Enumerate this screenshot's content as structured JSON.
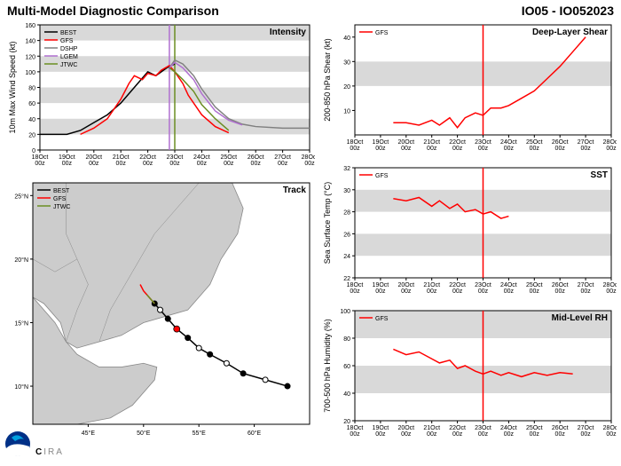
{
  "main_title": "Multi-Model Diagnostic Comparison",
  "storm_id": "IO05 - IO052023",
  "xaxis": {
    "ticks": [
      "18Oct\n00z",
      "19Oct\n00z",
      "20Oct\n00z",
      "21Oct\n00z",
      "22Oct\n00z",
      "23Oct\n00z",
      "24Oct\n00z",
      "25Oct\n00z",
      "26Oct\n00z",
      "27Oct\n00z",
      "28Oct\n00z"
    ],
    "range": [
      0,
      10
    ],
    "now_x": 5.0
  },
  "colors": {
    "band": "#d9d9d9",
    "bg": "#ffffff",
    "axis": "#000000",
    "BEST": "#000000",
    "GFS": "#ff0000",
    "DSHP": "#808080",
    "LGEM": "#b070d0",
    "JTWC": "#6b8e23",
    "map_land": "#cccccc",
    "map_border": "#888888",
    "map_water": "#ffffff",
    "now_line": "#ff0000",
    "track_marker_fill": "#ffffff"
  },
  "fonts": {
    "title": 14,
    "panel_title": 10,
    "axis_label": 9,
    "tick": 7,
    "legend": 7
  },
  "intensity": {
    "title": "Intensity",
    "ylabel": "10m Max Wind Speed (kt)",
    "ylim": [
      0,
      160
    ],
    "ytick_step": 20,
    "legend": [
      "BEST",
      "GFS",
      "DSHP",
      "LGEM",
      "JTWC"
    ],
    "series": {
      "BEST": [
        [
          0,
          20
        ],
        [
          1,
          20
        ],
        [
          1.5,
          25
        ],
        [
          2,
          35
        ],
        [
          2.5,
          45
        ],
        [
          3,
          60
        ],
        [
          3.5,
          80
        ],
        [
          4,
          100
        ],
        [
          4.3,
          95
        ],
        [
          4.5,
          100
        ],
        [
          4.7,
          105
        ],
        [
          5,
          110
        ]
      ],
      "GFS": [
        [
          1.5,
          20
        ],
        [
          2,
          28
        ],
        [
          2.5,
          40
        ],
        [
          3,
          65
        ],
        [
          3.3,
          85
        ],
        [
          3.5,
          95
        ],
        [
          3.8,
          90
        ],
        [
          4,
          98
        ],
        [
          4.3,
          95
        ],
        [
          4.5,
          102
        ],
        [
          4.8,
          108
        ],
        [
          5,
          100
        ],
        [
          5.3,
          85
        ],
        [
          5.5,
          70
        ],
        [
          6,
          45
        ],
        [
          6.5,
          30
        ],
        [
          7,
          22
        ]
      ],
      "DSHP": [
        [
          4.8,
          105
        ],
        [
          5,
          115
        ],
        [
          5.3,
          110
        ],
        [
          5.7,
          95
        ],
        [
          6,
          78
        ],
        [
          6.5,
          55
        ],
        [
          7,
          40
        ],
        [
          7.5,
          33
        ],
        [
          8,
          30
        ],
        [
          9,
          28
        ],
        [
          10,
          28
        ]
      ],
      "LGEM": [
        [
          4.8,
          105
        ],
        [
          5,
          112
        ],
        [
          5.3,
          105
        ],
        [
          5.7,
          90
        ],
        [
          6,
          72
        ],
        [
          6.5,
          50
        ],
        [
          7,
          38
        ],
        [
          7.5,
          32
        ]
      ],
      "JTWC": [
        [
          4.8,
          105
        ],
        [
          5,
          100
        ],
        [
          5.3,
          90
        ],
        [
          5.7,
          75
        ],
        [
          6,
          58
        ],
        [
          6.5,
          40
        ],
        [
          7,
          25
        ]
      ]
    },
    "vlines": [
      {
        "x": 4.8,
        "color": "#b070d0"
      },
      {
        "x": 5.0,
        "color": "#6b8e23"
      }
    ]
  },
  "track": {
    "title": "Track",
    "legend": [
      "BEST",
      "GFS",
      "JTWC"
    ],
    "lon_range": [
      40,
      65
    ],
    "lat_range": [
      7,
      26
    ],
    "lon_ticks": [
      45,
      50,
      55,
      60
    ],
    "lat_ticks": [
      10,
      15,
      20,
      25
    ],
    "lon_tick_labels": [
      "45°E",
      "50°E",
      "55°E",
      "60°E"
    ],
    "lat_tick_labels": [
      "10°N",
      "15°N",
      "20°N",
      "25°N"
    ],
    "series": {
      "BEST": {
        "points": [
          [
            63,
            10
          ],
          [
            61,
            10.5
          ],
          [
            59,
            11
          ],
          [
            57.5,
            11.8
          ],
          [
            56,
            12.5
          ],
          [
            55,
            13
          ],
          [
            54,
            13.8
          ],
          [
            53,
            14.5
          ],
          [
            52.2,
            15.3
          ],
          [
            51.5,
            16
          ],
          [
            51,
            16.5
          ]
        ],
        "markers": true
      },
      "GFS": {
        "points": [
          [
            51,
            16.5
          ],
          [
            50.5,
            17
          ],
          [
            50,
            17.5
          ],
          [
            49.7,
            18
          ]
        ],
        "markers": false
      },
      "JTWC": {
        "points": [
          [
            51,
            16.5
          ],
          [
            50.7,
            16.8
          ],
          [
            50.3,
            17.2
          ]
        ],
        "markers": false
      }
    },
    "highlight_marker": {
      "lon": 53,
      "lat": 14.5,
      "color": "#ff0000"
    }
  },
  "shear": {
    "title": "Deep-Layer Shear",
    "ylabel": "200-850 hPa Shear (kt)",
    "ylim": [
      0,
      45
    ],
    "yticks": [
      10,
      20,
      30,
      40
    ],
    "legend": [
      "GFS"
    ],
    "series": {
      "GFS": [
        [
          1.5,
          5
        ],
        [
          2,
          5
        ],
        [
          2.5,
          4
        ],
        [
          3,
          6
        ],
        [
          3.3,
          4
        ],
        [
          3.7,
          7
        ],
        [
          4,
          3
        ],
        [
          4.3,
          7
        ],
        [
          4.7,
          9
        ],
        [
          5,
          8
        ],
        [
          5.3,
          11
        ],
        [
          5.7,
          11
        ],
        [
          6,
          12
        ],
        [
          6.5,
          15
        ],
        [
          7,
          18
        ],
        [
          7.5,
          23
        ],
        [
          8,
          28
        ],
        [
          8.5,
          34
        ],
        [
          9,
          40
        ]
      ]
    }
  },
  "sst": {
    "title": "SST",
    "ylabel": "Sea Surface Temp (°C)",
    "ylim": [
      22,
      32
    ],
    "yticks": [
      22,
      24,
      26,
      28,
      30,
      32
    ],
    "legend": [
      "GFS"
    ],
    "series": {
      "GFS": [
        [
          1.5,
          29.2
        ],
        [
          2,
          29
        ],
        [
          2.5,
          29.3
        ],
        [
          3,
          28.5
        ],
        [
          3.3,
          29
        ],
        [
          3.7,
          28.3
        ],
        [
          4,
          28.7
        ],
        [
          4.3,
          28
        ],
        [
          4.7,
          28.2
        ],
        [
          5,
          27.8
        ],
        [
          5.3,
          28
        ],
        [
          5.7,
          27.4
        ],
        [
          6,
          27.6
        ]
      ]
    }
  },
  "rh": {
    "title": "Mid-Level RH",
    "ylabel": "700-500 hPa Humidity (%)",
    "ylim": [
      20,
      100
    ],
    "yticks": [
      20,
      40,
      60,
      80,
      100
    ],
    "legend": [
      "GFS"
    ],
    "series": {
      "GFS": [
        [
          1.5,
          72
        ],
        [
          2,
          68
        ],
        [
          2.5,
          70
        ],
        [
          3,
          65
        ],
        [
          3.3,
          62
        ],
        [
          3.7,
          64
        ],
        [
          4,
          58
        ],
        [
          4.3,
          60
        ],
        [
          4.7,
          56
        ],
        [
          5,
          54
        ],
        [
          5.3,
          56
        ],
        [
          5.7,
          53
        ],
        [
          6,
          55
        ],
        [
          6.5,
          52
        ],
        [
          7,
          55
        ],
        [
          7.5,
          53
        ],
        [
          8,
          55
        ],
        [
          8.5,
          54
        ]
      ]
    }
  },
  "logos": {
    "cira": "CIRA"
  }
}
